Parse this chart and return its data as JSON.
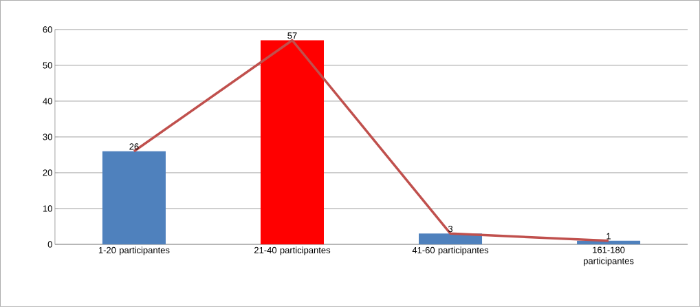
{
  "chart_data": {
    "type": "bar",
    "categories": [
      "1-20 participantes",
      "21-40 participantes",
      "41-60 participantes",
      "161-180 participantes"
    ],
    "series": [
      {
        "colors": [
          "#4f81bd",
          "#ff0000",
          "#4f81bd",
          "#4f81bd"
        ],
        "values": [
          26,
          57,
          3,
          1
        ],
        "value_labels": [
          "26",
          "57",
          "3",
          "1"
        ]
      },
      {
        "type": "line",
        "color": "#c0504d",
        "values": [
          26,
          57,
          3,
          1
        ]
      }
    ],
    "ylim": [
      0,
      60
    ],
    "yticks": [
      0,
      10,
      20,
      30,
      40,
      50,
      60
    ],
    "grid": "y"
  }
}
